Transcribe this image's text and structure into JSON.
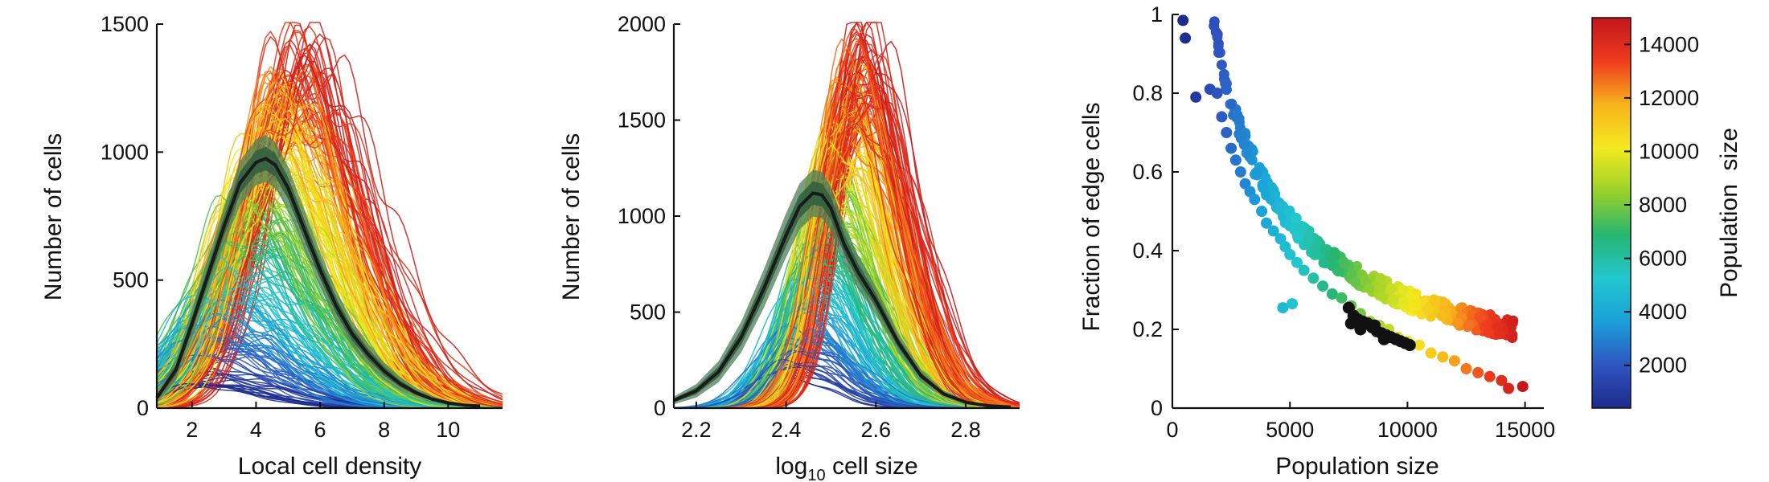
{
  "colors": {
    "colormap": [
      "#1b2a8a",
      "#2f56c2",
      "#1aa0d8",
      "#22c7cf",
      "#27b56f",
      "#9bd12a",
      "#f4ea20",
      "#f7b21c",
      "#ef3b1d",
      "#c2161c"
    ],
    "mean_line": "#1a1a1a",
    "band_inner": "#2e5e3e",
    "band_outer": "#4f7e5a",
    "black_points": "#111111"
  },
  "chart_data": [
    {
      "id": "local-density",
      "type": "line",
      "title": "",
      "xlabel": "Local cell density",
      "ylabel": "Number of cells",
      "xlim": [
        0.9,
        11.7
      ],
      "ylim": [
        0,
        1500
      ],
      "xticks": [
        2,
        4,
        6,
        8,
        10
      ],
      "xtick_labels": [
        "2",
        "4",
        "6",
        "8",
        "10"
      ],
      "yticks": [
        0,
        500,
        1000,
        1500
      ],
      "ytick_labels": [
        "0",
        "500",
        "1000",
        "1500"
      ],
      "series_color_by": "Population size",
      "series_population_range": [
        400,
        15000
      ],
      "series_summary": {
        "description": "one curve per population; peak height and peak position increase with population size",
        "peak_x_range": [
          1.8,
          6.0
        ],
        "peak_y_range": [
          80,
          1420
        ],
        "curve_width": 1.5
      },
      "mean_curve": {
        "name": "mean",
        "x": [
          0.9,
          1.5,
          2.0,
          2.5,
          3.0,
          3.5,
          4.0,
          4.3,
          4.6,
          5.0,
          5.5,
          6.0,
          6.5,
          7.0,
          7.5,
          8.0,
          8.5,
          9.0,
          9.5,
          10.0,
          10.5,
          11.0
        ],
        "y": [
          40,
          150,
          330,
          520,
          710,
          880,
          960,
          975,
          950,
          860,
          700,
          540,
          400,
          290,
          210,
          145,
          95,
          60,
          35,
          20,
          12,
          8
        ]
      },
      "band": {
        "name": "spread",
        "center_x": [
          0.9,
          1.5,
          2.0,
          2.5,
          3.0,
          3.5,
          4.0,
          4.3,
          4.6,
          5.0,
          5.5,
          6.0,
          6.5,
          7.0,
          7.5,
          8.0,
          8.5,
          9.0,
          9.5,
          10.0,
          10.5,
          11.0
        ],
        "half_width": [
          20,
          40,
          55,
          65,
          75,
          85,
          90,
          92,
          90,
          85,
          78,
          70,
          60,
          50,
          42,
          34,
          26,
          18,
          12,
          8,
          5,
          3
        ]
      }
    },
    {
      "id": "cell-size",
      "type": "line",
      "title": "",
      "xlabel_base": "log",
      "xlabel_sub": "10",
      "xlabel_rest": " cell size",
      "ylabel": "Number of cells",
      "xlim": [
        2.15,
        2.92
      ],
      "ylim": [
        0,
        2000
      ],
      "xticks": [
        2.2,
        2.4,
        2.6,
        2.8
      ],
      "xtick_labels": [
        "2.2",
        "2.4",
        "2.6",
        "2.8"
      ],
      "yticks": [
        0,
        500,
        1000,
        1500,
        2000
      ],
      "ytick_labels": [
        "0",
        "500",
        "1000",
        "1500",
        "2000"
      ],
      "series_color_by": "Population size",
      "series_population_range": [
        400,
        15000
      ],
      "series_summary": {
        "description": "one curve per population; peak near 2.45-2.5, height increases with population size",
        "peak_x_range": [
          2.38,
          2.6
        ],
        "peak_y_range": [
          120,
          1900
        ],
        "curve_width": 1.5
      },
      "mean_curve": {
        "name": "mean",
        "x": [
          2.15,
          2.2,
          2.25,
          2.3,
          2.35,
          2.4,
          2.43,
          2.46,
          2.48,
          2.5,
          2.53,
          2.56,
          2.6,
          2.65,
          2.7,
          2.75,
          2.8,
          2.85,
          2.9
        ],
        "y": [
          40,
          90,
          190,
          370,
          620,
          900,
          1050,
          1120,
          1110,
          1040,
          850,
          710,
          560,
          340,
          170,
          75,
          30,
          12,
          5
        ]
      },
      "band": {
        "name": "spread",
        "center_x": [
          2.15,
          2.2,
          2.25,
          2.3,
          2.35,
          2.4,
          2.43,
          2.46,
          2.48,
          2.5,
          2.53,
          2.56,
          2.6,
          2.65,
          2.7,
          2.75,
          2.8,
          2.85,
          2.9
        ],
        "half_width": [
          20,
          35,
          55,
          80,
          100,
          115,
          120,
          122,
          120,
          115,
          100,
          88,
          72,
          50,
          32,
          18,
          10,
          5,
          3
        ]
      }
    },
    {
      "id": "edge-fraction",
      "type": "scatter",
      "title": "",
      "xlabel": "Population size",
      "ylabel": "Fraction of edge cells",
      "xlim": [
        0,
        15800
      ],
      "ylim": [
        0,
        1.0
      ],
      "xticks": [
        0,
        5000,
        10000,
        15000
      ],
      "xtick_labels": [
        "0",
        "5000",
        "10000",
        "15000"
      ],
      "yticks": [
        0,
        0.2,
        0.4,
        0.6,
        0.8,
        1.0
      ],
      "ytick_labels": [
        "0",
        "0.2",
        "0.4",
        "0.6",
        "0.8",
        "1"
      ],
      "colored_points": {
        "x": [
          450,
          550,
          1000,
          1600,
          1900,
          2100,
          2300,
          2500,
          2700,
          2900,
          3100,
          3300,
          3500,
          3800,
          4000,
          4300,
          4600,
          4800,
          5000,
          5300,
          5600,
          6000,
          6400,
          6800,
          7200,
          7600,
          8000,
          8400,
          8800,
          9200,
          9600,
          10000,
          10500,
          11000,
          11500,
          12000,
          12500,
          13000,
          13500,
          14000,
          14300,
          14900,
          4700,
          5100
        ],
        "y": [
          0.985,
          0.94,
          0.79,
          0.81,
          0.8,
          0.74,
          0.7,
          0.66,
          0.63,
          0.6,
          0.57,
          0.55,
          0.53,
          0.5,
          0.47,
          0.45,
          0.43,
          0.41,
          0.39,
          0.37,
          0.35,
          0.33,
          0.31,
          0.29,
          0.28,
          0.26,
          0.24,
          0.22,
          0.21,
          0.2,
          0.18,
          0.17,
          0.16,
          0.14,
          0.13,
          0.12,
          0.1,
          0.09,
          0.08,
          0.07,
          0.05,
          0.055,
          0.255,
          0.265
        ],
        "color_by": "x"
      },
      "black_points": {
        "x": [
          7500,
          7700,
          7900,
          8100,
          8300,
          8500,
          8700,
          8900,
          9100,
          9300,
          9500,
          9700,
          9900,
          10100,
          7600,
          8000,
          8600,
          9000
        ],
        "y": [
          0.255,
          0.235,
          0.225,
          0.22,
          0.215,
          0.205,
          0.195,
          0.19,
          0.185,
          0.18,
          0.175,
          0.17,
          0.165,
          0.16,
          0.215,
          0.2,
          0.21,
          0.175
        ]
      }
    }
  ],
  "colorbar": {
    "label": "Population  size",
    "range": [
      400,
      15000
    ],
    "ticks": [
      2000,
      4000,
      6000,
      8000,
      10000,
      12000,
      14000
    ],
    "tick_labels": [
      "2000",
      "4000",
      "6000",
      "8000",
      "10000",
      "12000",
      "14000"
    ]
  }
}
